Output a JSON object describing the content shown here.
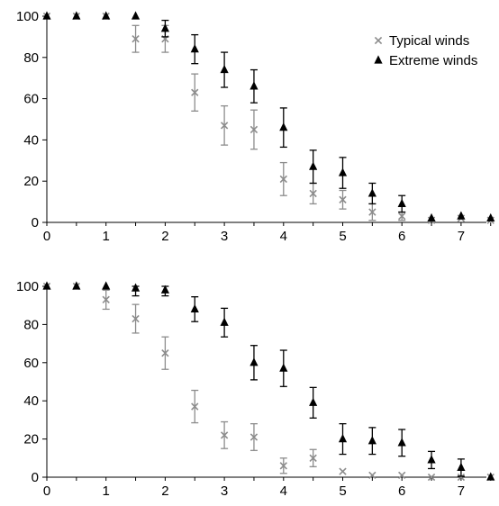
{
  "colors": {
    "typical": "#8c8c8c",
    "extreme": "#000000",
    "axis": "#000000"
  },
  "chart_data": [
    {
      "type": "scatter",
      "panel": "top",
      "xlim": [
        0,
        7.6
      ],
      "ylim": [
        0,
        100
      ],
      "x_ticks": [
        0,
        1,
        2,
        3,
        4,
        5,
        6,
        7
      ],
      "y_ticks": [
        0,
        20,
        40,
        60,
        80,
        100
      ],
      "grid": false,
      "legend": {
        "placement": "top-right",
        "entries": [
          "Typical winds",
          "Extreme winds"
        ]
      },
      "series": [
        {
          "name": "Typical winds",
          "marker": "x",
          "color": "#8c8c8c",
          "points": [
            {
              "x": 0,
              "y": 100,
              "err": 0
            },
            {
              "x": 0.5,
              "y": 100,
              "err": 0
            },
            {
              "x": 1,
              "y": 100,
              "err": 0
            },
            {
              "x": 1.5,
              "y": 89,
              "err": 6.5
            },
            {
              "x": 2,
              "y": 89,
              "err": 6.5
            },
            {
              "x": 2.5,
              "y": 63,
              "err": 9
            },
            {
              "x": 3,
              "y": 47,
              "err": 9.5
            },
            {
              "x": 3.5,
              "y": 45,
              "err": 9.5
            },
            {
              "x": 4,
              "y": 21,
              "err": 8
            },
            {
              "x": 4.5,
              "y": 14,
              "err": 5
            },
            {
              "x": 5,
              "y": 11,
              "err": 4.5
            },
            {
              "x": 5.5,
              "y": 5,
              "err": 4
            },
            {
              "x": 6,
              "y": 3,
              "err": 2
            },
            {
              "x": 6.5,
              "y": 1,
              "err": 0
            },
            {
              "x": 7,
              "y": 2,
              "err": 0
            },
            {
              "x": 7.5,
              "y": 1,
              "err": 0
            }
          ]
        },
        {
          "name": "Extreme winds",
          "marker": "triangle",
          "color": "#000000",
          "points": [
            {
              "x": 0,
              "y": 100,
              "err": 0
            },
            {
              "x": 0.5,
              "y": 100,
              "err": 0
            },
            {
              "x": 1,
              "y": 100,
              "err": 0
            },
            {
              "x": 1.5,
              "y": 100,
              "err": 0
            },
            {
              "x": 2,
              "y": 94,
              "err": 4
            },
            {
              "x": 2.5,
              "y": 84,
              "err": 7
            },
            {
              "x": 3,
              "y": 74,
              "err": 8.5
            },
            {
              "x": 3.5,
              "y": 66,
              "err": 8
            },
            {
              "x": 4,
              "y": 46,
              "err": 9.5
            },
            {
              "x": 4.5,
              "y": 27,
              "err": 8
            },
            {
              "x": 5,
              "y": 24,
              "err": 7.5
            },
            {
              "x": 5.5,
              "y": 14,
              "err": 5
            },
            {
              "x": 6,
              "y": 9,
              "err": 4
            },
            {
              "x": 6.5,
              "y": 2,
              "err": 0
            },
            {
              "x": 7,
              "y": 3,
              "err": 0
            },
            {
              "x": 7.5,
              "y": 2,
              "err": 0
            }
          ]
        }
      ]
    },
    {
      "type": "scatter",
      "panel": "bottom",
      "xlim": [
        0,
        7.6
      ],
      "ylim": [
        0,
        100
      ],
      "x_ticks": [
        0,
        1,
        2,
        3,
        4,
        5,
        6,
        7
      ],
      "y_ticks": [
        0,
        20,
        40,
        60,
        80,
        100
      ],
      "grid": false,
      "series": [
        {
          "name": "Typical winds",
          "marker": "x",
          "color": "#8c8c8c",
          "points": [
            {
              "x": 0,
              "y": 100,
              "err": 0
            },
            {
              "x": 0.5,
              "y": 100,
              "err": 0
            },
            {
              "x": 1,
              "y": 93,
              "err": 5
            },
            {
              "x": 1.5,
              "y": 83,
              "err": 7.5
            },
            {
              "x": 2,
              "y": 65,
              "err": 8.5
            },
            {
              "x": 2.5,
              "y": 37,
              "err": 8.5
            },
            {
              "x": 3,
              "y": 22,
              "err": 7
            },
            {
              "x": 3.5,
              "y": 21,
              "err": 7
            },
            {
              "x": 4,
              "y": 6,
              "err": 4
            },
            {
              "x": 4.5,
              "y": 10,
              "err": 4.5
            },
            {
              "x": 5,
              "y": 3,
              "err": 0
            },
            {
              "x": 5.5,
              "y": 1,
              "err": 0
            },
            {
              "x": 6,
              "y": 1,
              "err": 0
            },
            {
              "x": 6.5,
              "y": 0,
              "err": 0
            },
            {
              "x": 7,
              "y": 0,
              "err": 0
            },
            {
              "x": 7.5,
              "y": 0,
              "err": 0
            }
          ]
        },
        {
          "name": "Extreme winds",
          "marker": "triangle",
          "color": "#000000",
          "points": [
            {
              "x": 0,
              "y": 100,
              "err": 0
            },
            {
              "x": 0.5,
              "y": 100,
              "err": 0
            },
            {
              "x": 1,
              "y": 100,
              "err": 0
            },
            {
              "x": 1.5,
              "y": 99,
              "err": 4
            },
            {
              "x": 2,
              "y": 98,
              "err": 3
            },
            {
              "x": 2.5,
              "y": 88,
              "err": 6.5
            },
            {
              "x": 3,
              "y": 81,
              "err": 7.5
            },
            {
              "x": 3.5,
              "y": 60,
              "err": 9
            },
            {
              "x": 4,
              "y": 57,
              "err": 9.5
            },
            {
              "x": 4.5,
              "y": 39,
              "err": 8
            },
            {
              "x": 5,
              "y": 20,
              "err": 8
            },
            {
              "x": 5.5,
              "y": 19,
              "err": 7
            },
            {
              "x": 6,
              "y": 18,
              "err": 7
            },
            {
              "x": 6.5,
              "y": 9,
              "err": 4.5
            },
            {
              "x": 7,
              "y": 5,
              "err": 4.5
            },
            {
              "x": 7.5,
              "y": 0,
              "err": 0
            }
          ]
        }
      ]
    }
  ]
}
